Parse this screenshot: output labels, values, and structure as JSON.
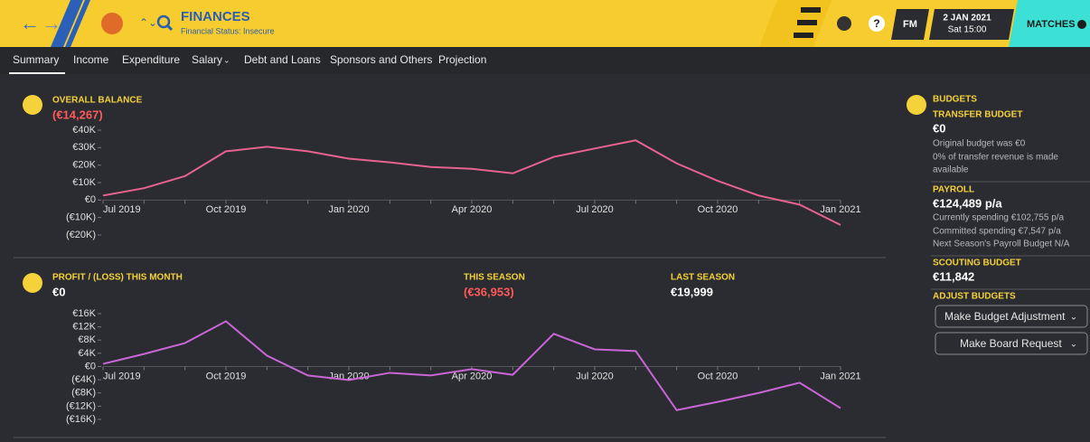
{
  "header": {
    "title": "FINANCES",
    "subtitle": "Financial Status: Insecure",
    "date": "2 JAN 2021",
    "time": "Sat 15:00",
    "logo": "FM",
    "matches": "MATCHES"
  },
  "tabs": [
    "Summary",
    "Income",
    "Expenditure",
    "Salary",
    "Debt and Loans",
    "Sponsors and Others",
    "Projection"
  ],
  "chart_data": [
    {
      "type": "line",
      "title": "OVERALL BALANCE",
      "headline": "(€14,267)",
      "categories": [
        "Jul 2019",
        null,
        null,
        "Oct 2019",
        null,
        null,
        "Jan 2020",
        null,
        null,
        "Apr 2020",
        null,
        null,
        "Jul 2020",
        null,
        null,
        "Oct 2020",
        null,
        null,
        "Jan 2021"
      ],
      "values": [
        2600,
        6800,
        13700,
        27900,
        30500,
        27900,
        23700,
        21600,
        18900,
        17900,
        15300,
        24700,
        29500,
        34200,
        21000,
        11000,
        2600,
        -2600,
        -14267
      ],
      "color": "#e8628f",
      "ylim": [
        -20000,
        40000
      ],
      "yticks": [
        {
          "value": 40000,
          "label": "€40K"
        },
        {
          "value": 30000,
          "label": "€30K"
        },
        {
          "value": 20000,
          "label": "€20K"
        },
        {
          "value": 10000,
          "label": "€10K"
        },
        {
          "value": 0,
          "label": "€0"
        },
        {
          "value": -10000,
          "label": "(€10K)"
        },
        {
          "value": -20000,
          "label": "(€20K)"
        }
      ]
    },
    {
      "type": "line",
      "title": "PROFIT / (LOSS) THIS MONTH",
      "headline": "€0",
      "stats": [
        {
          "label": "THIS SEASON",
          "value": "(€36,953)"
        },
        {
          "label": "LAST SEASON",
          "value": "€19,999"
        }
      ],
      "categories": [
        "Jul 2019",
        null,
        null,
        "Oct 2019",
        null,
        null,
        "Jan 2020",
        null,
        null,
        "Apr 2020",
        null,
        null,
        "Jul 2020",
        null,
        null,
        "Oct 2020",
        null,
        null,
        "Jan 2021"
      ],
      "values": [
        800,
        3800,
        7100,
        13700,
        3300,
        -2700,
        -4100,
        -1900,
        -2700,
        -800,
        -2500,
        9900,
        5200,
        4700,
        -13200,
        -10700,
        -8000,
        -4900,
        -12600
      ],
      "color": "#c966d6",
      "ylim": [
        -16000,
        16000
      ],
      "yticks": [
        {
          "value": 16000,
          "label": "€16K"
        },
        {
          "value": 12000,
          "label": "€12K"
        },
        {
          "value": 8000,
          "label": "€8K"
        },
        {
          "value": 4000,
          "label": "€4K"
        },
        {
          "value": 0,
          "label": "€0"
        },
        {
          "value": -4000,
          "label": "(€4K)"
        },
        {
          "value": -8000,
          "label": "(€8K)"
        },
        {
          "value": -12000,
          "label": "(€12K)"
        },
        {
          "value": -16000,
          "label": "(€16K)"
        }
      ]
    }
  ],
  "budgets": {
    "title": "BUDGETS",
    "transfer": {
      "label": "TRANSFER BUDGET",
      "value": "€0",
      "notes": [
        "Original budget was €0",
        "0% of transfer revenue is made",
        "available"
      ]
    },
    "payroll": {
      "label": "PAYROLL",
      "value": "€124,489 p/a",
      "notes": [
        "Currently spending €102,755 p/a",
        "Committed spending €7,547 p/a",
        "Next Season's Payroll Budget N/A"
      ]
    },
    "scouting": {
      "label": "SCOUTING BUDGET",
      "value": "€11,842"
    },
    "adjust": {
      "label": "ADJUST BUDGETS",
      "buttons": [
        "Make Budget Adjustment",
        "Make Board Request"
      ]
    }
  }
}
